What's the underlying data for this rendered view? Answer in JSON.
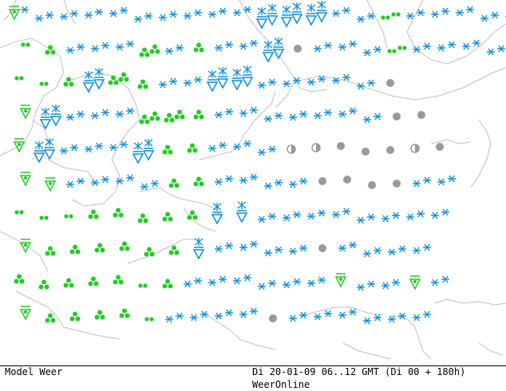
{
  "footer": {
    "model_label": "Model Weer",
    "run_label": "Di 20-01-09 06..12 GMT (Di 00 + 180h)",
    "source_label": "WeerOnline"
  },
  "colors": {
    "snow": "#0a8ee0",
    "rain": "#22cc22",
    "cloud": "#999999",
    "coast": "#c0c0c0",
    "frame": "#000000"
  },
  "legend_symbols": {
    "S": "snow-symbol",
    "B": "snow-shower-symbol",
    "r": "rain-drizzle-symbol",
    "R": "rain-cluster-symbol",
    "V": "rain-shower-symbol",
    "c": "overcast-symbol",
    "h": "half-cloud-symbol"
  },
  "map_grid": [
    "VS    SS  SS  SS  SS  SS  SS  SS  SS  SS  BB  BB  BB  SS  SS  rr  SS  SS  SS  SS  SS",
    "r  R  SS  SS  SS  RR  SS  R  SS  SS  BB  c  SS  SS  SS  rr  SS  SS  SS  SS",
    "r  r  R  BB  RR  R  SS  SS  BB  BB  SS  SS  SS  SS  SS  c",
    "V  BB  SS  SS  SS  RR  RR  R  SS  SS  SS  SS  SS  SS  SS  c  c",
    "V  BB  SS  SS  SS  BB  R  R  SS  SS  SS  h  h  c  c  c  h  c",
    "V  V  SS  SS  SS  SS  R  R  SS  SS  SS  SS  c  c  c  c  SS  SS",
    "r  r  r  R  R  R  R  R  B  B  SS  SS  SS  SS  SS  SS  SS  SS",
    "V  R  R  R  R  R  R  B  SS  SS  SS  SS  c  SS  SS  SS  SS",
    "R  R  R  R  R  r  R  SS  SS  SS  SS  SS  SS  V  SS  SS  V  SS",
    "V  R  R  R  R  r  SS  SS  SS  SS  c  SS  SS  SS  SS  SS  SS"
  ]
}
